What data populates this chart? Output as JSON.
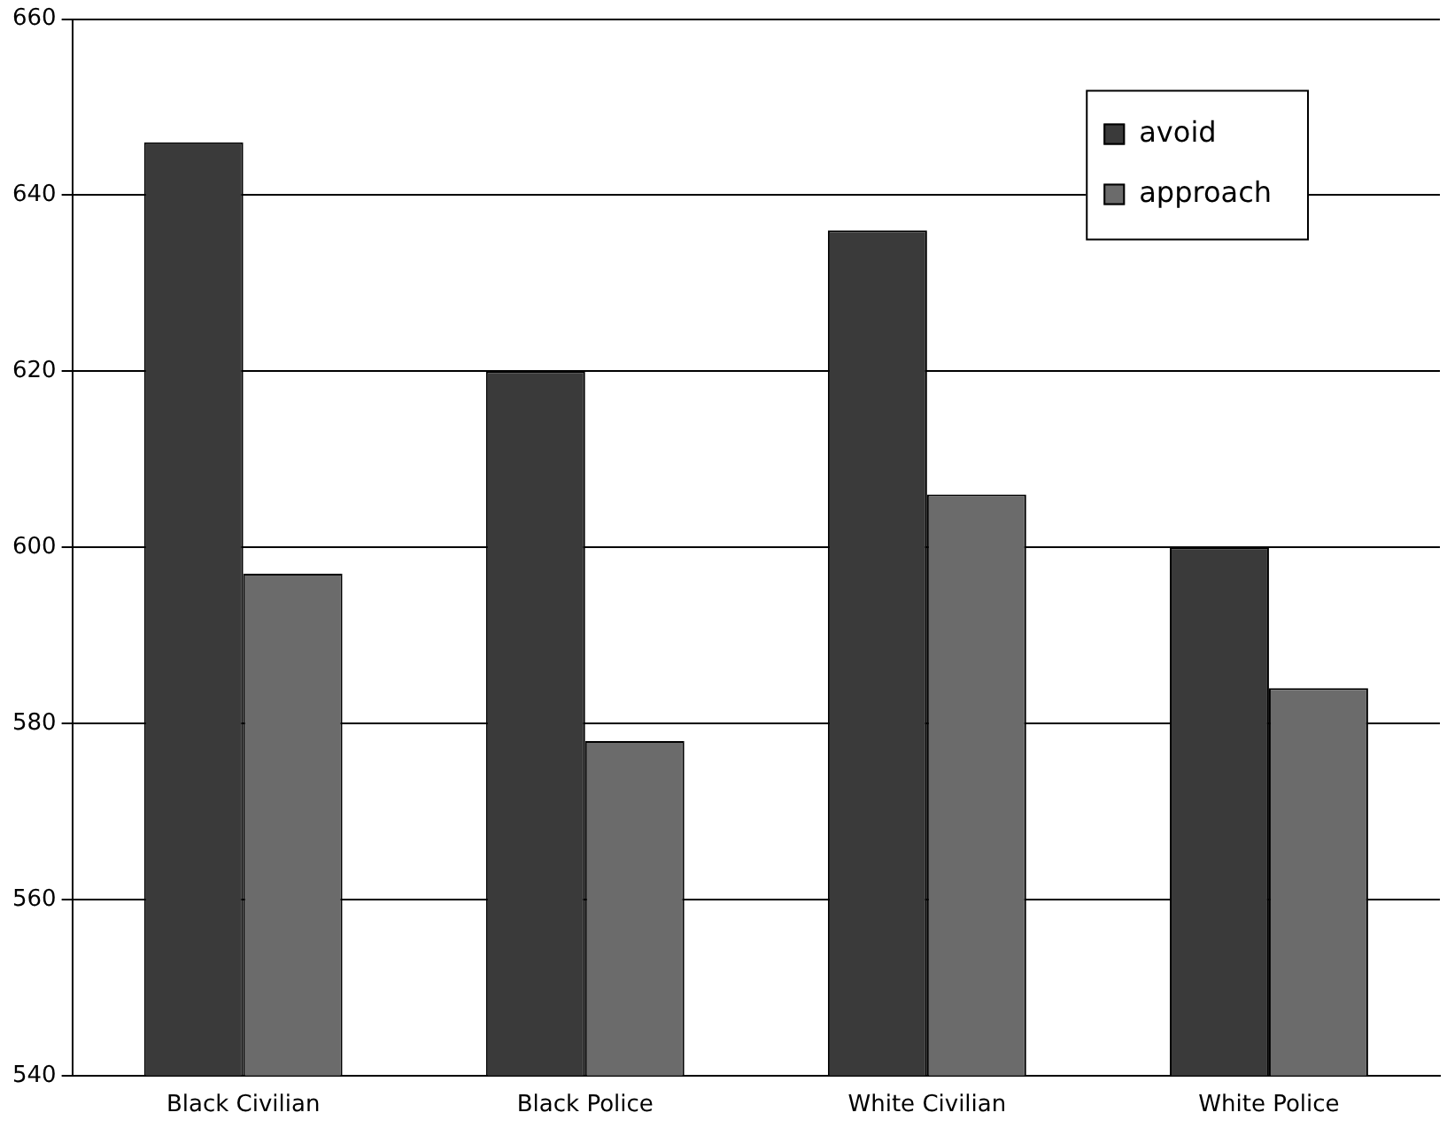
{
  "chart_data": {
    "type": "bar",
    "categories": [
      "Black Civilian",
      "Black Police",
      "White Civilian",
      "White Police"
    ],
    "series": [
      {
        "name": "avoid",
        "color": "#3a3a3a",
        "values": [
          646,
          620,
          636,
          600
        ]
      },
      {
        "name": "approach",
        "color": "#6b6b6b",
        "values": [
          597,
          578,
          606,
          584
        ]
      }
    ],
    "ylim": [
      540,
      660
    ],
    "yticks": [
      540,
      560,
      580,
      600,
      620,
      640,
      660
    ],
    "grid": "y",
    "legend": "top right"
  }
}
